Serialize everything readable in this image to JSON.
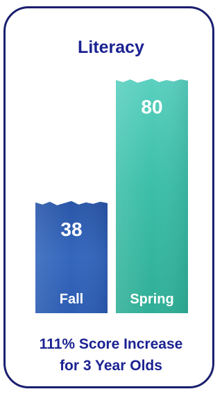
{
  "title": "Literacy",
  "colors": {
    "border": "#1b1f6f",
    "text": "#1b2291",
    "fall_bar": "#2e5fb0",
    "spring_bar": "#3cbfa7"
  },
  "chart_data": {
    "type": "bar",
    "title": "Literacy",
    "categories": [
      "Fall",
      "Spring"
    ],
    "values": [
      38,
      80
    ],
    "xlabel": "",
    "ylabel": "",
    "ylim": [
      0,
      80
    ]
  },
  "caption": {
    "line1": "111% Score Increase",
    "line2": "for 3 Year Olds"
  }
}
